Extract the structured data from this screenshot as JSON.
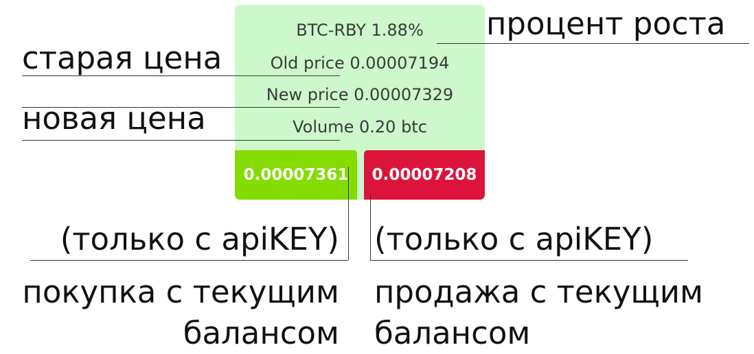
{
  "card": {
    "pair": "BTC-RBY",
    "change": "1.88%",
    "old_price_label": "Old price",
    "old_price": "0.00007194",
    "new_price_label": "New price",
    "new_price": "0.00007329",
    "volume_label": "Volume",
    "volume": "0.20 btc",
    "buy_price": "0.00007361",
    "sell_price": "0.00007208",
    "colors": {
      "background": "#ccf8cc",
      "buy": "#84dc00",
      "sell": "#dc143c"
    }
  },
  "annotations": {
    "growth_percent": "процент роста",
    "old_price": "старая цена",
    "new_price": "новая  цена",
    "api_key_buy": "(только с apiKEY)",
    "api_key_sell": "(только с apiKEY)",
    "buy_desc_line1": "покупка с текущим",
    "buy_desc_line2": "балансом",
    "sell_desc_line1": "продажа с текущим",
    "sell_desc_line2": "балансом"
  }
}
